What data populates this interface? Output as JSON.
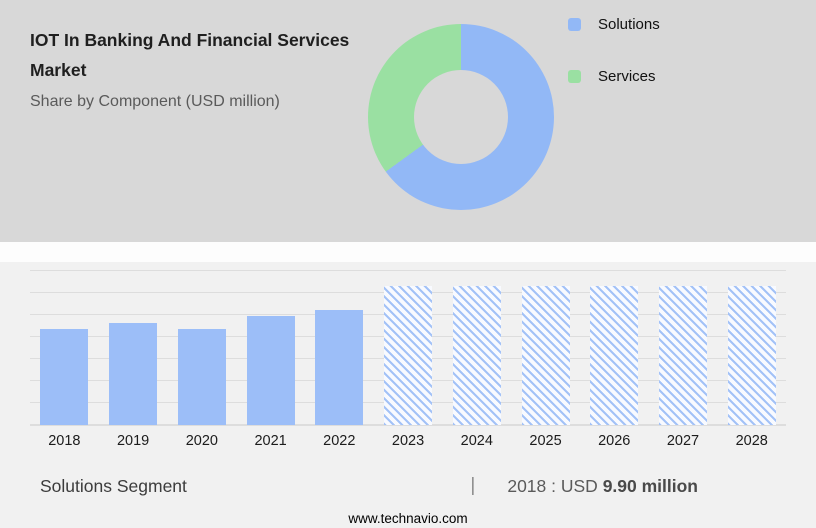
{
  "header": {
    "title": "IOT In Banking And Financial Services Market",
    "subtitle": "Share by Component (USD million)"
  },
  "legend": {
    "items": [
      {
        "label": "Solutions",
        "color": "#92b8f6"
      },
      {
        "label": "Services",
        "color": "#9ae0a2"
      }
    ]
  },
  "chart_data": [
    {
      "type": "pie",
      "title": "Share by Component (USD million)",
      "labels": [
        "Solutions",
        "Services"
      ],
      "values_percent": [
        65,
        35
      ],
      "colors": [
        "#92b8f6",
        "#9ae0a2"
      ],
      "donut": true,
      "legend_position": "right"
    },
    {
      "type": "bar",
      "categories": [
        "2018",
        "2019",
        "2020",
        "2021",
        "2022",
        "2023",
        "2024",
        "2025",
        "2026",
        "2027",
        "2028"
      ],
      "values": [
        9.9,
        10.55,
        9.95,
        11.3,
        11.9,
        14.3,
        14.3,
        14.3,
        14.3,
        14.3,
        14.3
      ],
      "forecast_start_index": 5,
      "forecast_note": "2023-2028 bars are forecast, shown with diagonal hatching",
      "bar_color": "#9cbef8",
      "ylim": [
        0,
        16
      ],
      "grid": true,
      "xlabel": "",
      "ylabel": ""
    }
  ],
  "caption": {
    "segment": "Solutions Segment",
    "separator": "|",
    "stat_prefix": "2018 : USD",
    "stat_value": "9.90 million"
  },
  "footer": {
    "website": "www.technavio.com"
  }
}
